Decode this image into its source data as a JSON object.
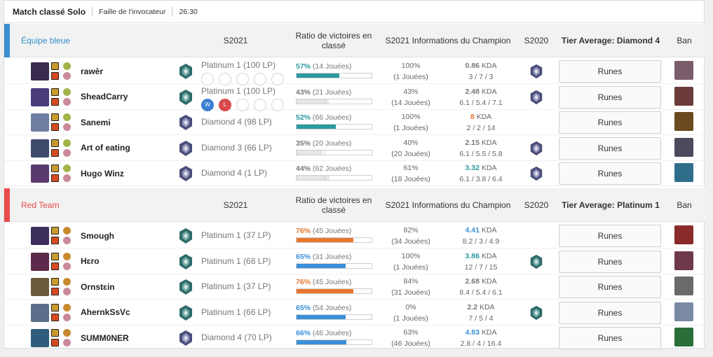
{
  "header": {
    "title": "Match classé Solo",
    "map": "Faille de l'invocateur",
    "duration": "26:30"
  },
  "labels": {
    "season": "S2021",
    "winrate": "Ratio de victoires en classé",
    "champ_info": "S2021 Informations du Champion",
    "prev_season": "S2020",
    "ban": "Ban",
    "runes": "Runes",
    "kda_suffix": "KDA",
    "win_letter": "W",
    "loss_letter": "L"
  },
  "colors": {
    "blue_team": "#3a8fd1",
    "red_team": "#e84c4c",
    "teal_bar": "#2a9a9f",
    "blue_bar": "#3a8fd9",
    "orange_bar": "#e8762d",
    "grey_bar": "#cfcfcf"
  },
  "teams": [
    {
      "name": "Équipe bleue",
      "name_color": "#3090c7",
      "tier_average": "Tier Average: Diamond 4",
      "players": [
        {
          "name": "rawèr",
          "rank": "Platinum 1 (100 LP)",
          "emblem": "platinum",
          "recent": [
            "",
            "",
            "",
            "",
            ""
          ],
          "winrate_pct": "57%",
          "winrate_games": "(14 Jouées)",
          "winrate_value": 57,
          "bar": "teal",
          "champ_wr": "100%",
          "champ_games": "(1 Jouées)",
          "kda": "0.86",
          "kda_color": "#777777",
          "kda_detail": "3 / 7 / 3",
          "s2020": "diamond",
          "champ_color": "#3b2a4f",
          "ban_color": "#7a5c6b"
        },
        {
          "name": "SheadCarry",
          "rank": "Platinum 1 (100 LP)",
          "emblem": "platinum",
          "recent": [
            "W",
            "L",
            "",
            "",
            ""
          ],
          "winrate_pct": "43%",
          "winrate_games": "(21 Jouées)",
          "winrate_value": 43,
          "bar": "grey",
          "champ_wr": "43%",
          "champ_games": "(14 Jouées)",
          "kda": "2.48",
          "kda_color": "#777777",
          "kda_detail": "6.1 / 5.4 / 7.1",
          "s2020": "diamond",
          "champ_color": "#4a3b7c",
          "ban_color": "#6b3b3b"
        },
        {
          "name": "Sanemi",
          "rank": "Diamond 4 (98 LP)",
          "emblem": "diamond",
          "recent": [],
          "winrate_pct": "52%",
          "winrate_games": "(66 Jouées)",
          "winrate_value": 52,
          "bar": "teal",
          "champ_wr": "100%",
          "champ_games": "(1 Jouées)",
          "kda": "8",
          "kda_color": "#e8762d",
          "kda_detail": "2 / 2 / 14",
          "s2020": "",
          "champ_color": "#6e7fa3",
          "ban_color": "#6b4a1f"
        },
        {
          "name": "Art of eating",
          "rank": "Diamond 3 (66 LP)",
          "emblem": "diamond",
          "recent": [],
          "winrate_pct": "35%",
          "winrate_games": "(20 Jouées)",
          "winrate_value": 35,
          "bar": "grey",
          "champ_wr": "40%",
          "champ_games": "(20 Jouées)",
          "kda": "2.15",
          "kda_color": "#777777",
          "kda_detail": "6.1 / 5.5 / 5.8",
          "s2020": "diamond",
          "champ_color": "#3d4a6b",
          "ban_color": "#4a4a5c"
        },
        {
          "name": "Hugo Winz",
          "rank": "Diamond 4 (1 LP)",
          "emblem": "diamond",
          "recent": [],
          "winrate_pct": "44%",
          "winrate_games": "(62 Jouées)",
          "winrate_value": 44,
          "bar": "grey",
          "champ_wr": "61%",
          "champ_games": "(18 Jouées)",
          "kda": "3.32",
          "kda_color": "#2a9a9f",
          "kda_detail": "6.1 / 3.8 / 6.4",
          "s2020": "diamond",
          "champ_color": "#5a3a6e",
          "ban_color": "#2f6e8a"
        }
      ]
    },
    {
      "name": "Red Team",
      "name_color": "#e84c4c",
      "tier_average": "Tier Average: Platinum 1",
      "players": [
        {
          "name": "Smough",
          "rank": "Platinum 1 (37 LP)",
          "emblem": "platinum",
          "recent": [],
          "winrate_pct": "76%",
          "winrate_games": "(45 Jouées)",
          "winrate_value": 76,
          "bar": "orange",
          "champ_wr": "82%",
          "champ_games": "(34 Jouées)",
          "kda": "4.41",
          "kda_color": "#3a8fd9",
          "kda_detail": "8.2 / 3 / 4.9",
          "s2020": "",
          "champ_color": "#3d2f5c",
          "ban_color": "#8a2a2a"
        },
        {
          "name": "Hɛro",
          "rank": "Platinum 1 (68 LP)",
          "emblem": "platinum",
          "recent": [],
          "winrate_pct": "65%",
          "winrate_games": "(31 Jouées)",
          "winrate_value": 65,
          "bar": "blue",
          "champ_wr": "100%",
          "champ_games": "(1 Jouées)",
          "kda": "3.86",
          "kda_color": "#2a9a9f",
          "kda_detail": "12 / 7 / 15",
          "s2020": "platinum",
          "champ_color": "#5c2a4a",
          "ban_color": "#6e3a4a"
        },
        {
          "name": "Ornstɛin",
          "rank": "Platinum 1 (37 LP)",
          "emblem": "platinum",
          "recent": [],
          "winrate_pct": "76%",
          "winrate_games": "(45 Jouées)",
          "winrate_value": 76,
          "bar": "orange",
          "champ_wr": "84%",
          "champ_games": "(31 Jouées)",
          "kda": "2.68",
          "kda_color": "#777777",
          "kda_detail": "8.4 / 5.4 / 6.1",
          "s2020": "",
          "champ_color": "#6b5a3a",
          "ban_color": "#6a6a6a"
        },
        {
          "name": "AhernkSsVc",
          "rank": "Platinum 1 (66 LP)",
          "emblem": "platinum",
          "recent": [],
          "winrate_pct": "65%",
          "winrate_games": "(54 Jouées)",
          "winrate_value": 65,
          "bar": "blue",
          "champ_wr": "0%",
          "champ_games": "(1 Jouées)",
          "kda": "2.2",
          "kda_color": "#777777",
          "kda_detail": "7 / 5 / 4",
          "s2020": "platinum",
          "champ_color": "#5a6e8a",
          "ban_color": "#7a8aa3"
        },
        {
          "name": "SUMM0NER",
          "rank": "Diamond 4 (70 LP)",
          "emblem": "diamond",
          "recent": [],
          "winrate_pct": "66%",
          "winrate_games": "(46 Jouées)",
          "winrate_value": 66,
          "bar": "blue",
          "champ_wr": "63%",
          "champ_games": "(46 Jouées)",
          "kda": "4.83",
          "kda_color": "#3a8fd9",
          "kda_detail": "2.8 / 4 / 16.4",
          "s2020": "",
          "champ_color": "#2f5c7c",
          "ban_color": "#2a6e3a"
        }
      ]
    }
  ]
}
